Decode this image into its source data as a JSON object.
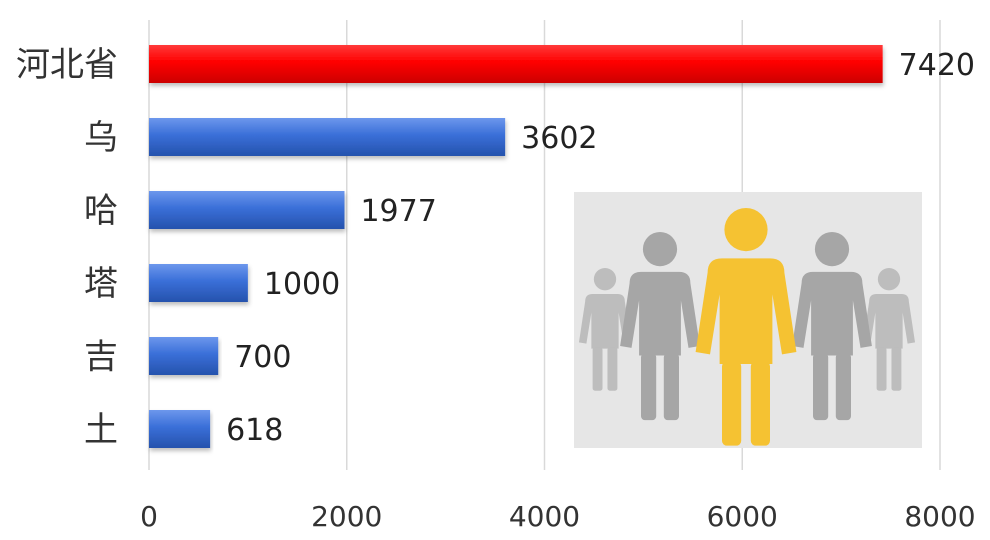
{
  "chart_data": {
    "type": "bar",
    "orientation": "horizontal",
    "categories": [
      "河北省",
      "乌",
      "哈",
      "塔",
      "吉",
      "土"
    ],
    "values": [
      7420,
      3602,
      1977,
      1000,
      700,
      618
    ],
    "bar_colors": [
      "#ff0000",
      "#3a6fd8",
      "#3a6fd8",
      "#3a6fd8",
      "#3a6fd8",
      "#3a6fd8"
    ],
    "xlim": [
      0,
      8000
    ],
    "xticks": [
      0,
      2000,
      4000,
      6000,
      8000
    ],
    "grid": true,
    "data_labels": true,
    "title": "",
    "xlabel": "",
    "ylabel": ""
  },
  "illustration": {
    "icon": "people-group-icon",
    "background": "#e6e6e6",
    "highlight_color": "#f5c232",
    "other_color": "#a6a6a6"
  }
}
